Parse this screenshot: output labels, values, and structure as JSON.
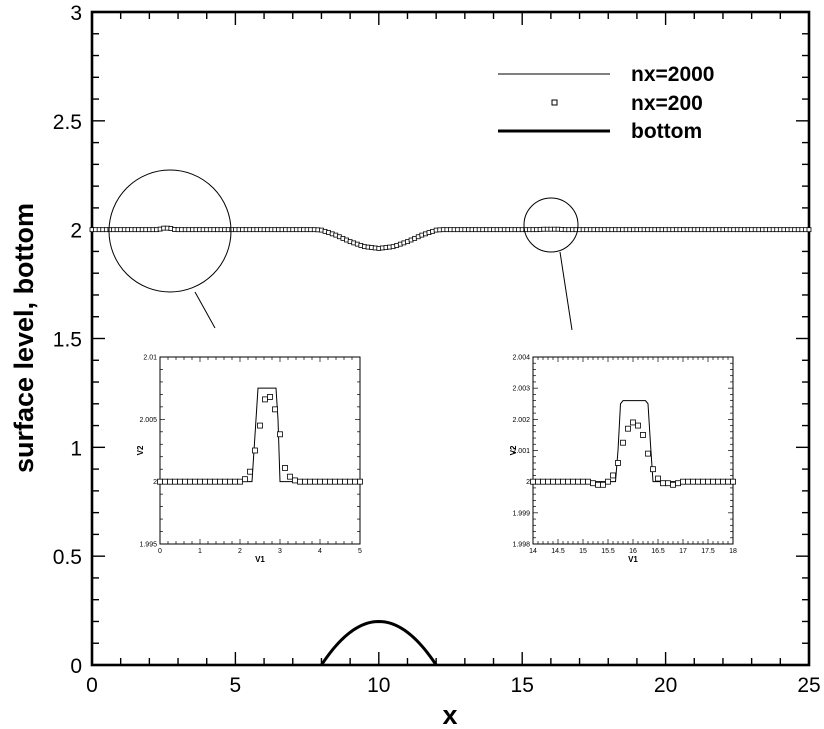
{
  "chart_data": {
    "type": "line",
    "xlabel": "x",
    "ylabel": "surface level, bottom",
    "xlim": [
      0,
      25
    ],
    "ylim": [
      0,
      3
    ],
    "xticks": [
      "0",
      "5",
      "10",
      "15",
      "20",
      "25"
    ],
    "yticks": [
      "0",
      "0.5",
      "1",
      "1.5",
      "2",
      "2.5",
      "3"
    ],
    "legend_position": "top-right",
    "series": [
      {
        "name": "nx=2000",
        "style": "thin-line",
        "x": [
          0,
          2.3,
          2.5,
          2.7,
          2.9,
          3.1,
          7.8,
          8.0,
          8.5,
          9.0,
          9.5,
          10.0,
          10.5,
          11.0,
          11.5,
          12.0,
          12.2,
          15.5,
          15.7,
          16.0,
          16.3,
          16.5,
          25
        ],
        "y": [
          2.0,
          2.0,
          2.007,
          2.007,
          2.0,
          2.0,
          2.0,
          1.998,
          1.975,
          1.945,
          1.922,
          1.914,
          1.922,
          1.945,
          1.975,
          1.998,
          2.0,
          2.0,
          2.002,
          2.002,
          2.002,
          2.0,
          2.0
        ]
      },
      {
        "name": "nx=200",
        "style": "square-markers",
        "x": [
          0,
          25
        ],
        "y": [
          2.0,
          2.0
        ]
      },
      {
        "name": "bottom",
        "style": "thick-line",
        "x": [
          8.0,
          8.5,
          9.0,
          9.5,
          10.0,
          10.5,
          11.0,
          11.5,
          12.0
        ],
        "y": [
          0,
          0.0875,
          0.15,
          0.1875,
          0.2,
          0.1875,
          0.15,
          0.0875,
          0
        ]
      }
    ],
    "insets": [
      {
        "xlabel": "V1",
        "ylabel": "V2",
        "xlim": [
          0,
          5
        ],
        "ylim": [
          1.995,
          2.01
        ],
        "xticks": [
          "0",
          "1",
          "2",
          "3",
          "4",
          "5"
        ],
        "yticks": [
          "1.995",
          "2",
          "2.005",
          "2.01"
        ],
        "line": {
          "x": [
            0,
            2.2,
            2.3,
            2.4,
            2.45,
            2.9,
            2.95,
            3.0,
            3.1,
            5
          ],
          "y": [
            2.0,
            2.0,
            2.0,
            2.005,
            2.0075,
            2.0075,
            2.005,
            2.0,
            2.0,
            2.0
          ]
        },
        "markers": {
          "x": [
            0,
            0.125,
            0.25,
            0.375,
            0.5,
            0.625,
            0.75,
            0.875,
            1.0,
            1.125,
            1.25,
            1.375,
            1.5,
            1.625,
            1.75,
            1.875,
            2.0,
            2.125,
            2.25,
            2.375,
            2.5,
            2.625,
            2.75,
            2.875,
            3.0,
            3.125,
            3.25,
            3.375,
            3.5,
            3.625,
            3.75,
            3.875,
            4.0,
            4.125,
            4.25,
            4.375,
            4.5,
            4.625,
            4.75,
            4.875,
            5.0
          ],
          "y": [
            2.0,
            2.0,
            2.0,
            2.0,
            2.0,
            2.0,
            2.0,
            2.0,
            2.0,
            2.0,
            2.0,
            2.0,
            2.0,
            2.0,
            2.0,
            2.0,
            2.0,
            2.0002,
            2.0008,
            2.0025,
            2.0045,
            2.0066,
            2.0068,
            2.0058,
            2.0038,
            2.0011,
            2.0004,
            2.0001,
            2.0,
            2.0,
            2.0,
            2.0,
            2.0,
            2.0,
            2.0,
            2.0,
            2.0,
            2.0,
            2.0,
            2.0,
            2.0
          ]
        }
      },
      {
        "xlabel": "V1",
        "ylabel": "V2",
        "xlim": [
          14,
          18
        ],
        "ylim": [
          1.998,
          2.004
        ],
        "xticks": [
          "14",
          "14.5",
          "15",
          "15.5",
          "16",
          "16.5",
          "17",
          "17.5",
          "18"
        ],
        "yticks": [
          "1.998",
          "1.999",
          "2",
          "2.001",
          "2.002",
          "2.003",
          "2.004"
        ],
        "line": {
          "x": [
            14,
            15.6,
            15.65,
            15.7,
            15.75,
            15.8,
            16.25,
            16.3,
            16.35,
            16.4,
            16.45,
            18
          ],
          "y": [
            2.0,
            2.0,
            2.0,
            2.001,
            2.0025,
            2.0026,
            2.0026,
            2.0025,
            2.0012,
            2.0,
            2.0,
            2.0
          ]
        },
        "markers": {
          "x": [
            14.0,
            14.1,
            14.2,
            14.3,
            14.4,
            14.5,
            14.6,
            14.7,
            14.8,
            14.9,
            15.0,
            15.1,
            15.2,
            15.3,
            15.4,
            15.5,
            15.6,
            15.7,
            15.8,
            15.9,
            16.0,
            16.1,
            16.2,
            16.3,
            16.4,
            16.5,
            16.6,
            16.7,
            16.8,
            16.9,
            17.0,
            17.1,
            17.2,
            17.3,
            17.4,
            17.5,
            17.6,
            17.7,
            17.8,
            17.9,
            18.0
          ],
          "y": [
            2.0,
            2.0,
            2.0,
            2.0,
            2.0,
            2.0,
            2.0,
            2.0,
            2.0,
            2.0,
            2.0,
            2.0,
            1.99995,
            1.9999,
            1.9999,
            2.0,
            2.0002,
            2.0006,
            2.00125,
            2.0017,
            2.0019,
            2.0018,
            2.0015,
            2.0009,
            2.0004,
            2.0001,
            1.99995,
            1.99995,
            1.9999,
            1.99995,
            2.0,
            2.0,
            2.0,
            2.0,
            2.0,
            2.0,
            2.0,
            2.0,
            2.0,
            2.0,
            2.0
          ]
        }
      }
    ]
  }
}
